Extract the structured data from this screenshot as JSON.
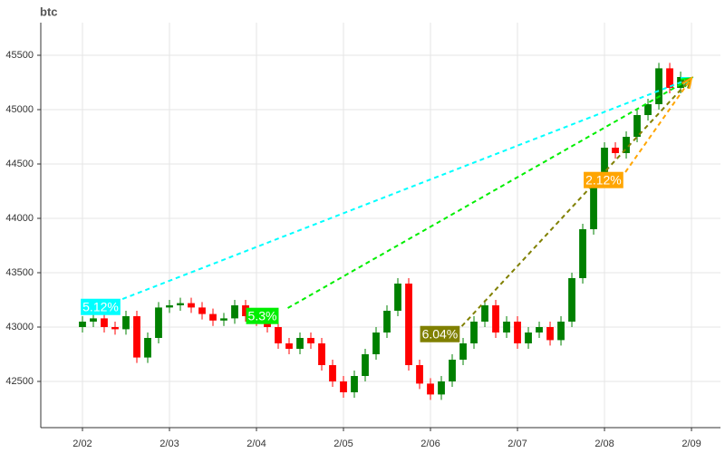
{
  "chart_data": {
    "type": "candlestick",
    "title": "btc",
    "x": [
      0,
      0.125,
      0.25,
      0.375,
      0.5,
      0.625,
      0.75,
      0.875,
      1,
      1.125,
      1.25,
      1.375,
      1.5,
      1.625,
      1.75,
      1.875,
      2,
      2.125,
      2.25,
      2.375,
      2.5,
      2.625,
      2.75,
      2.875,
      3,
      3.125,
      3.25,
      3.375,
      3.5,
      3.625,
      3.75,
      3.875,
      4,
      4.125,
      4.25,
      4.375,
      4.5,
      4.625,
      4.75,
      4.875,
      5,
      5.125,
      5.25,
      5.375,
      5.5,
      5.625,
      5.75,
      5.875,
      6,
      6.125,
      6.25,
      6.375,
      6.5,
      6.625,
      6.75,
      6.875
    ],
    "open": [
      43000,
      43050,
      43080,
      43000,
      42980,
      43100,
      42720,
      42900,
      43180,
      43200,
      43220,
      43180,
      43120,
      43060,
      43080,
      43200,
      43100,
      43060,
      43000,
      42850,
      42800,
      42900,
      42850,
      42650,
      42500,
      42400,
      42550,
      42750,
      42950,
      43150,
      43400,
      42650,
      42480,
      42380,
      42500,
      42700,
      42850,
      43050,
      43200,
      42950,
      43050,
      42850,
      42950,
      43000,
      42880,
      43050,
      43450,
      43900,
      44350,
      44650,
      44600,
      44750,
      44950,
      45050,
      45380,
      45200
    ],
    "high": [
      43100,
      43130,
      43130,
      43050,
      43150,
      43150,
      42950,
      43230,
      43250,
      43270,
      43270,
      43230,
      43170,
      43130,
      43250,
      43250,
      43150,
      43110,
      43050,
      42900,
      42950,
      42950,
      42900,
      42700,
      42550,
      42600,
      42800,
      43000,
      43200,
      43450,
      43450,
      42700,
      42530,
      42550,
      42750,
      42900,
      43100,
      43250,
      43250,
      43100,
      43100,
      43000,
      43050,
      43050,
      43100,
      43500,
      43950,
      44400,
      44700,
      44700,
      44800,
      45000,
      45100,
      45430,
      45430,
      45350
    ],
    "low": [
      42950,
      43000,
      42950,
      42930,
      42930,
      42670,
      42670,
      42850,
      43130,
      43150,
      43130,
      43070,
      43010,
      43010,
      43030,
      43050,
      43010,
      42950,
      42800,
      42750,
      42750,
      42800,
      42600,
      42450,
      42350,
      42350,
      42500,
      42700,
      42900,
      43100,
      42600,
      42430,
      42330,
      42330,
      42450,
      42650,
      42800,
      43000,
      42900,
      42900,
      42800,
      42800,
      42900,
      42830,
      42830,
      43000,
      43400,
      43850,
      44300,
      44550,
      44550,
      44700,
      44900,
      45000,
      45150,
      45150
    ],
    "close": [
      43050,
      43080,
      43000,
      42980,
      43100,
      42720,
      42900,
      43180,
      43200,
      43220,
      43180,
      43120,
      43060,
      43080,
      43200,
      43100,
      43060,
      43000,
      42850,
      42800,
      42900,
      42850,
      42650,
      42500,
      42400,
      42550,
      42750,
      42950,
      43150,
      43400,
      42650,
      42480,
      42380,
      42500,
      42700,
      42850,
      43050,
      43200,
      42950,
      43050,
      42850,
      42950,
      43000,
      42880,
      43050,
      43450,
      43900,
      44350,
      44650,
      44600,
      44750,
      44950,
      45050,
      45380,
      45200,
      45300
    ],
    "up_color": "#008000",
    "down_color": "#ff0000",
    "xlim": [
      -0.479,
      7.333
    ],
    "xticks": [
      {
        "value": 0,
        "label": "2/02"
      },
      {
        "value": 1,
        "label": "2/03"
      },
      {
        "value": 2,
        "label": "2/04"
      },
      {
        "value": 3,
        "label": "2/05"
      },
      {
        "value": 4,
        "label": "2/06"
      },
      {
        "value": 5,
        "label": "2/07"
      },
      {
        "value": 6,
        "label": "2/08"
      },
      {
        "value": 7,
        "label": "2/09"
      }
    ],
    "ylim": [
      42075,
      45800
    ],
    "yticks": [
      42500,
      43000,
      43500,
      44000,
      44500,
      45000,
      45500
    ],
    "grid": true,
    "annotations": [
      {
        "label": "5.12%",
        "color": "#00ffff",
        "x0": 0.46,
        "y0": 43258,
        "x1": 7.0,
        "y1": 45290
      },
      {
        "label": "5.3%",
        "color": "#00ee00",
        "x0": 2.36,
        "y0": 43175,
        "x1": 7.0,
        "y1": 45290
      },
      {
        "label": "6.04%",
        "color": "#808000",
        "x0": 4.36,
        "y0": 43008,
        "x1": 7.0,
        "y1": 45290
      },
      {
        "label": "2.12%",
        "color": "#ffa500",
        "x0": 6.24,
        "y0": 44425,
        "x1": 7.0,
        "y1": 45290
      }
    ]
  }
}
